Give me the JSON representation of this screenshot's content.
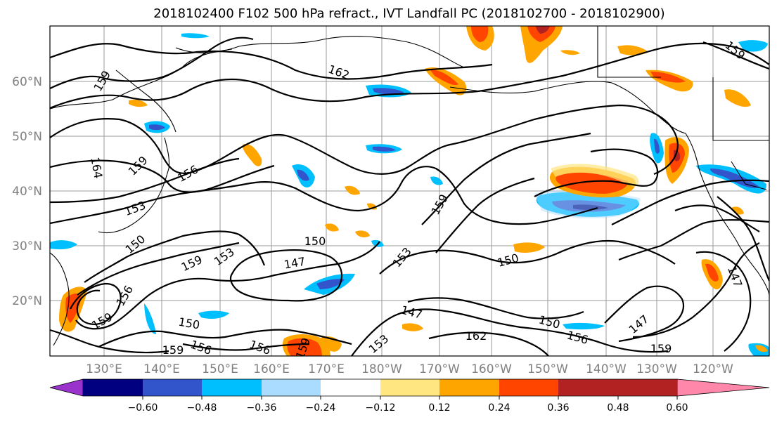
{
  "title": "2018102400 F102 500 hPa refract., IVT Landfall PC (2018102700 - 2018102900)",
  "lat_labels": [
    "60°N",
    "50°N",
    "40°N",
    "30°N",
    "20°N"
  ],
  "lon_labels": [
    "130°E",
    "140°E",
    "150°E",
    "160°E",
    "170°E",
    "180°W",
    "170°W",
    "160°W",
    "150°W",
    "140°W",
    "130°W",
    "120°W"
  ],
  "contour_labels": [
    "159",
    "162",
    "159",
    "164",
    "159",
    "156",
    "153",
    "150",
    "159",
    "153",
    "150",
    "147",
    "153",
    "159",
    "150",
    "156",
    "159",
    "150",
    "159",
    "156",
    "156",
    "159",
    "153",
    "147",
    "162",
    "150",
    "156",
    "147",
    "159",
    "147"
  ],
  "colorbar": {
    "colors": [
      "#9933cc",
      "#000080",
      "#3355cc",
      "#00bfff",
      "#aadcff",
      "#ffffff",
      "#ffe680",
      "#ffa500",
      "#ff4500",
      "#b22222",
      "#ff88aa"
    ],
    "tick_labels": [
      "−0.60",
      "−0.48",
      "−0.36",
      "−0.24",
      "−0.12",
      "0.12",
      "0.24",
      "0.36",
      "0.48",
      "0.60"
    ]
  }
}
